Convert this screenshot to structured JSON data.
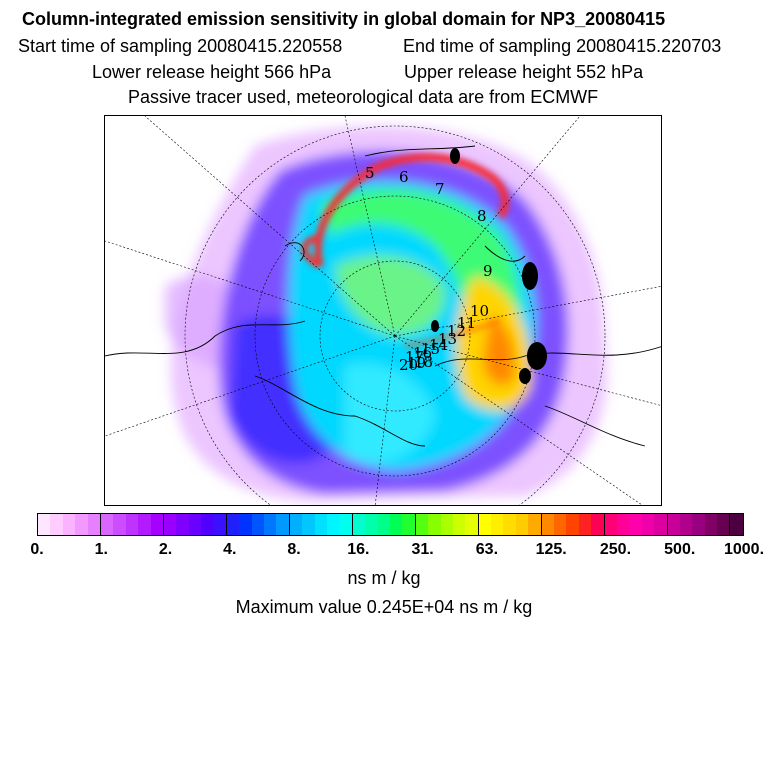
{
  "header": {
    "title": "Column-integrated emission sensitivity in global domain for NP3_20080415",
    "start_time": "Start time of sampling 20080415.220558",
    "end_time": "End time of sampling 20080415.220703",
    "lower_release": "Lower release height  566 hPa",
    "upper_release": "Upper release height  552 hPa",
    "tracer_note": "Passive tracer used, meteorological data are from ECMWF"
  },
  "map": {
    "trajectory_labels": [
      "5",
      "6",
      "7",
      "8",
      "9",
      "10",
      "11",
      "12",
      "13",
      "14",
      "15",
      "16",
      "17",
      "18",
      "19",
      "20"
    ],
    "colors": {
      "low": "#cc66ff",
      "mid": "#00e5ff",
      "high": "#ffcc00",
      "peak": "#ff1a1a",
      "land": "#000000"
    }
  },
  "colorbar": {
    "labels": [
      "0.",
      "1.",
      "2.",
      "4.",
      "8.",
      "16.",
      "31.",
      "63.",
      "125.",
      "250.",
      "500.",
      "1000."
    ],
    "colors": [
      "#ffe6ff",
      "#ffccff",
      "#f9b3ff",
      "#f299ff",
      "#e680ff",
      "#d966ff",
      "#cc4dff",
      "#bf33ff",
      "#b31aff",
      "#a600ff",
      "#9900ff",
      "#8000ff",
      "#6a00ff",
      "#5000ff",
      "#3a10ff",
      "#2020ff",
      "#0033ff",
      "#0055ff",
      "#0077ff",
      "#0099ff",
      "#00b0ff",
      "#00c8ff",
      "#00e0ff",
      "#00f5ff",
      "#00ffee",
      "#00ffcc",
      "#00ffaa",
      "#00ff88",
      "#00ff55",
      "#20ff30",
      "#55ff10",
      "#88ff00",
      "#aaff00",
      "#ccff00",
      "#e6ff00",
      "#ffff00",
      "#ffee00",
      "#ffdd00",
      "#ffcc00",
      "#ffaa00",
      "#ff8800",
      "#ff6600",
      "#ff4400",
      "#ff2222",
      "#ff0055",
      "#ff0077",
      "#ff0099",
      "#ff00aa",
      "#f000aa",
      "#dd00a0",
      "#c80099",
      "#b0008c",
      "#990080",
      "#800066",
      "#660050",
      "#4d0040"
    ],
    "unit": "ns m / kg",
    "max_value": "Maximum value  0.245E+04 ns m / kg"
  }
}
